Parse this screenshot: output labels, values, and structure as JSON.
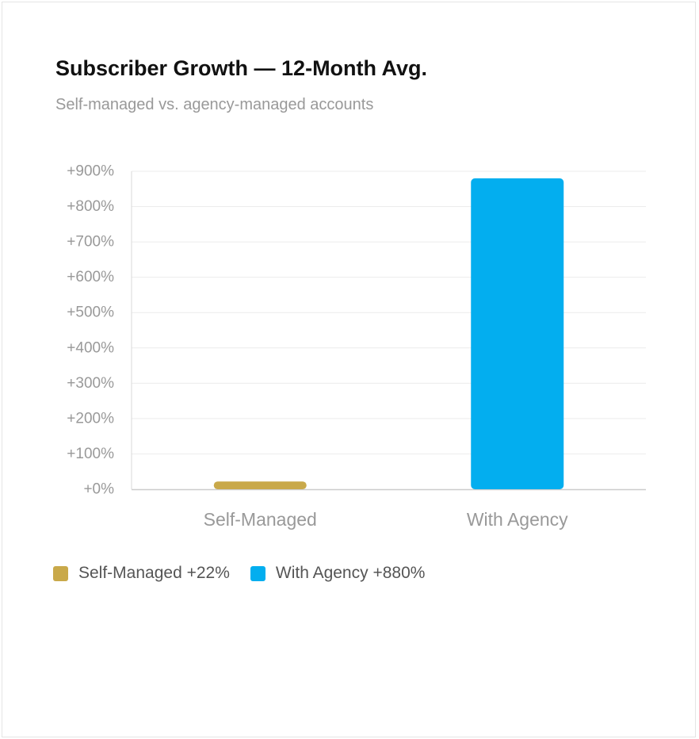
{
  "card": {
    "title": "Subscriber Growth — 12-Month Avg.",
    "subtitle": "Self-managed vs. agency-managed accounts"
  },
  "chart_data": {
    "type": "bar",
    "title": "Subscriber Growth — 12-Month Avg.",
    "subtitle": "Self-managed vs. agency-managed accounts",
    "categories": [
      "Self-Managed",
      "With Agency"
    ],
    "values": [
      22,
      880
    ],
    "colors": [
      "#c9a94a",
      "#03aeef"
    ],
    "ylim": [
      0,
      900
    ],
    "yticks": [
      0,
      100,
      200,
      300,
      400,
      500,
      600,
      700,
      800,
      900
    ],
    "ytick_labels": [
      "+0%",
      "+100%",
      "+200%",
      "+300%",
      "+400%",
      "+500%",
      "+600%",
      "+700%",
      "+800%",
      "+900%"
    ],
    "grid": true,
    "legend_position": "bottom-left",
    "legend": [
      {
        "label": "Self-Managed +22%",
        "color": "#c9a94a"
      },
      {
        "label": "With Agency +880%",
        "color": "#03aeef"
      }
    ]
  }
}
